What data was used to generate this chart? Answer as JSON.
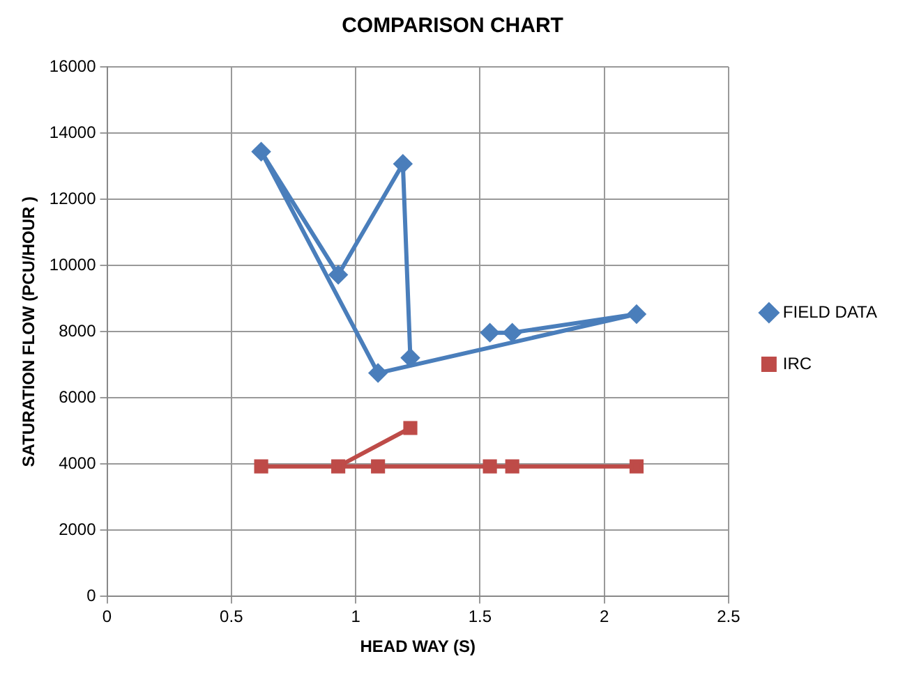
{
  "chart_data": {
    "type": "line",
    "title": "COMPARISON CHART",
    "xlabel": "HEAD WAY (S)",
    "ylabel": "SATURATION FLOW (PCU/HOUR )",
    "series": [
      {
        "name": "FIELD DATA",
        "color": "#4a7ebb",
        "marker": "diamond",
        "x": [
          1.54,
          1.63,
          2.13,
          1.09,
          0.62,
          0.93,
          1.19,
          1.22
        ],
        "values": [
          7970,
          7970,
          8530,
          6750,
          13440,
          9720,
          13070,
          7210
        ]
      },
      {
        "name": "IRC",
        "color": "#be4b48",
        "marker": "square",
        "x": [
          1.54,
          1.63,
          2.13,
          1.09,
          0.62,
          0.93,
          1.22
        ],
        "values": [
          3930,
          3930,
          3930,
          3930,
          3930,
          3930,
          5090
        ]
      }
    ],
    "xlim": [
      0,
      2.5
    ],
    "xticks": [
      0,
      0.5,
      1,
      1.5,
      2,
      2.5
    ],
    "ylim": [
      0,
      16000
    ],
    "yticks": [
      0,
      2000,
      4000,
      6000,
      8000,
      10000,
      12000,
      14000,
      16000
    ],
    "grid": true,
    "legend": "right"
  }
}
